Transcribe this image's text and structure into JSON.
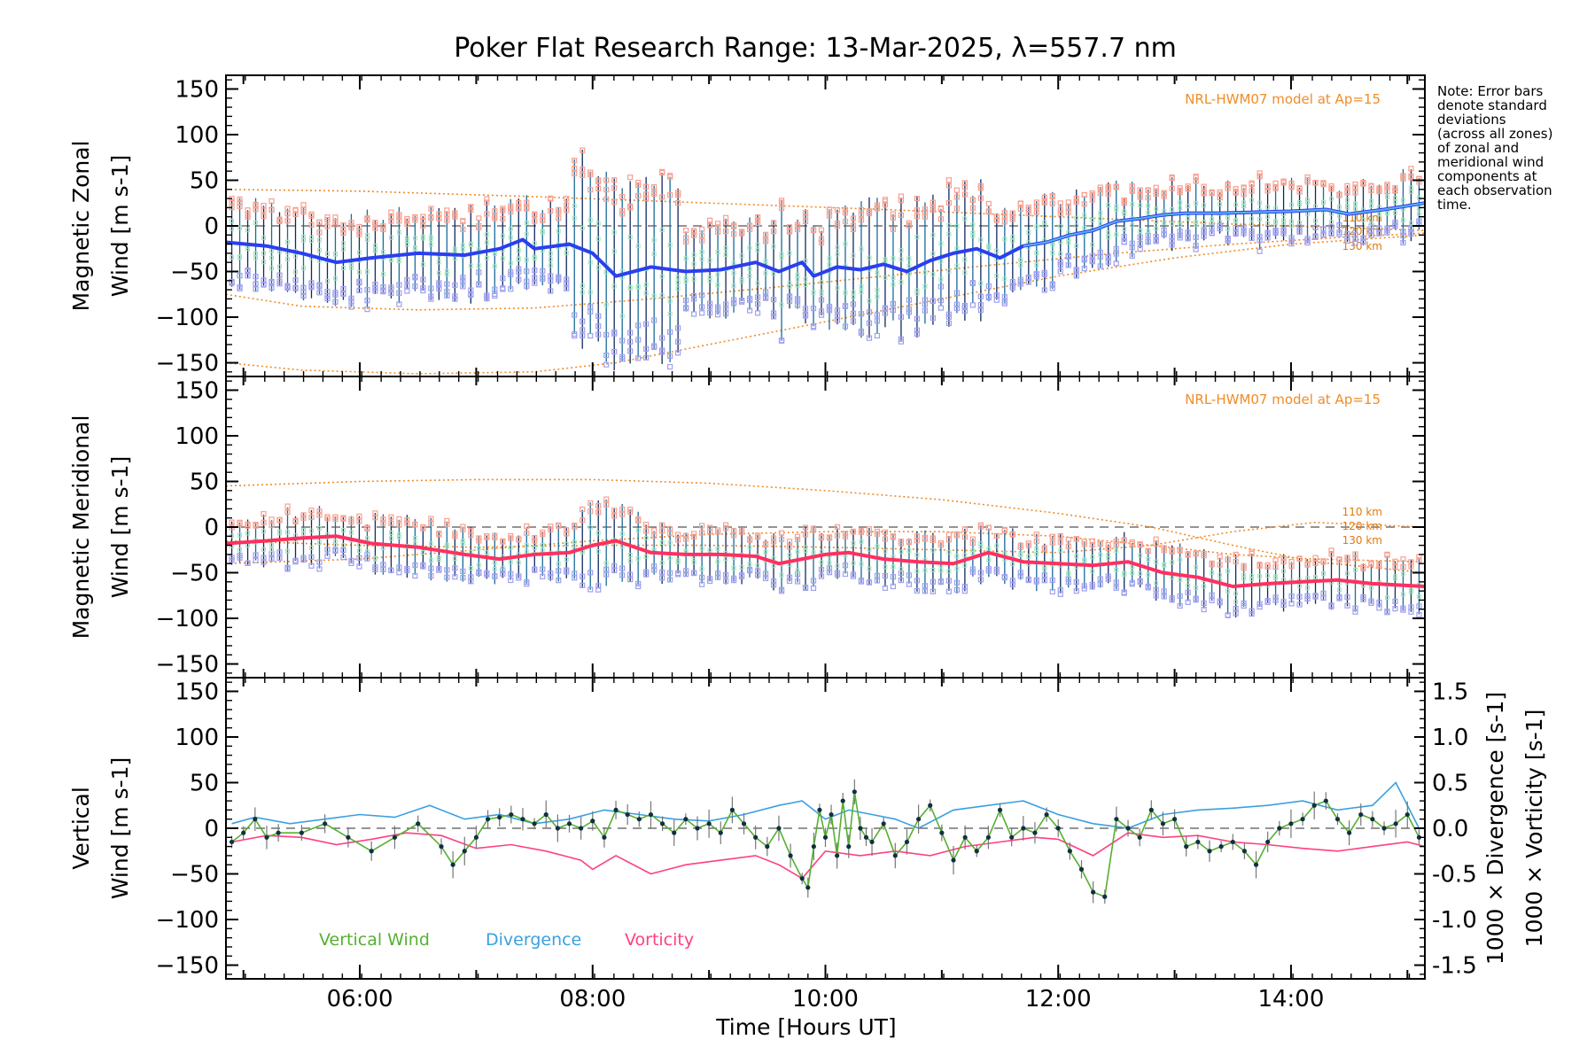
{
  "title": "Poker Flat Research Range: 13-Mar-2025, λ=557.7 nm",
  "note": [
    "Note: Error bars",
    "denote standard",
    "deviations",
    "(across all zones)",
    "of zonal and",
    "meridional wind",
    "components at",
    "each observation",
    "time."
  ],
  "model_label": "NRL-HWM07 model at Ap=15",
  "altitude_labels": [
    "110 km",
    "120 km",
    "130 km"
  ],
  "colors": {
    "zonal_mean": "#2a3ff0",
    "zonal_mean_light": "#5ab0f0",
    "meridional_mean": "#ff3060",
    "vertical_wind": "#55b030",
    "divergence": "#3aa0e0",
    "vorticity": "#ff4080",
    "model": "#f08c28",
    "error_bar_a": "#102a60",
    "error_bar_b": "#1a6a9a",
    "scatter_high": "#f8a090",
    "scatter_low": "#9fa0f0",
    "scatter_mid": "#a0e8c0"
  },
  "chart_data": [
    {
      "type": "line",
      "panel": "zonal",
      "ylabel_lines": [
        "Magnetic Zonal",
        "Wind [m s-1]"
      ],
      "ylim": [
        -165,
        165
      ],
      "yticks": [
        150,
        100,
        50,
        0,
        -50,
        -100,
        -150
      ],
      "xlim": [
        4.85,
        15.15
      ],
      "model_labels": [
        "110 km",
        "120 km",
        "130 km"
      ],
      "series": [
        {
          "kind": "mean",
          "x": [
            4.85,
            5.2,
            5.5,
            5.8,
            6.1,
            6.5,
            6.9,
            7.2,
            7.4,
            7.5,
            7.8,
            8.0,
            8.2,
            8.5,
            8.8,
            9.1,
            9.4,
            9.6,
            9.8,
            9.9,
            10.1,
            10.3,
            10.5,
            10.7,
            10.9,
            11.1,
            11.3,
            11.5,
            11.7,
            11.9,
            12.1,
            12.3,
            12.5,
            12.7,
            12.9,
            13.1,
            13.4,
            13.7,
            14.0,
            14.3,
            14.5,
            14.8,
            15.15
          ],
          "y": [
            -18,
            -22,
            -30,
            -40,
            -35,
            -30,
            -32,
            -25,
            -15,
            -25,
            -20,
            -30,
            -55,
            -45,
            -50,
            -48,
            -40,
            -50,
            -40,
            -55,
            -45,
            -48,
            -42,
            -50,
            -38,
            -30,
            -25,
            -35,
            -22,
            -18,
            -10,
            -5,
            5,
            8,
            12,
            14,
            14,
            15,
            16,
            18,
            13,
            18,
            25
          ]
        },
        {
          "kind": "model",
          "x": [
            4.85,
            6.0,
            7.5,
            9.0,
            10.5,
            12.0,
            13.5,
            15.15
          ],
          "y": [
            40,
            38,
            32,
            25,
            18,
            10,
            2,
            -5
          ]
        },
        {
          "kind": "model",
          "x": [
            4.85,
            5.5,
            6.5,
            7.5,
            8.5,
            9.5,
            10.5,
            11.5,
            12.5,
            13.5,
            14.5,
            15.15
          ],
          "y": [
            -75,
            -88,
            -92,
            -90,
            -80,
            -68,
            -55,
            -42,
            -30,
            -20,
            -12,
            -8
          ]
        },
        {
          "kind": "model",
          "x": [
            4.85,
            5.5,
            6.5,
            7.5,
            8.2,
            9.0,
            10.0,
            11.0,
            12.0,
            13.0,
            14.0,
            15.15
          ],
          "y": [
            -150,
            -158,
            -162,
            -160,
            -150,
            -130,
            -105,
            -80,
            -55,
            -35,
            -20,
            -10
          ]
        }
      ]
    },
    {
      "type": "line",
      "panel": "meridional",
      "ylabel_lines": [
        "Magnetic Meridional",
        "Wind [m s-1]"
      ],
      "ylim": [
        -165,
        165
      ],
      "yticks": [
        150,
        100,
        50,
        0,
        -50,
        -100,
        -150
      ],
      "xlim": [
        4.85,
        15.15
      ],
      "model_labels": [
        "110 km",
        "120 km",
        "130 km"
      ],
      "series": [
        {
          "kind": "mean",
          "x": [
            4.85,
            5.2,
            5.5,
            5.8,
            6.1,
            6.5,
            6.9,
            7.2,
            7.5,
            7.8,
            8.0,
            8.2,
            8.5,
            8.8,
            9.1,
            9.4,
            9.6,
            9.8,
            10.0,
            10.2,
            10.5,
            10.8,
            11.1,
            11.4,
            11.7,
            12.0,
            12.3,
            12.6,
            12.9,
            13.2,
            13.5,
            13.8,
            14.1,
            14.4,
            14.7,
            15.15
          ],
          "y": [
            -18,
            -15,
            -12,
            -10,
            -18,
            -22,
            -30,
            -35,
            -30,
            -28,
            -20,
            -15,
            -28,
            -30,
            -30,
            -32,
            -40,
            -35,
            -30,
            -28,
            -35,
            -38,
            -40,
            -28,
            -38,
            -40,
            -42,
            -38,
            -50,
            -55,
            -65,
            -62,
            -60,
            -58,
            -62,
            -65
          ]
        },
        {
          "kind": "model",
          "x": [
            4.85,
            6.0,
            7.0,
            8.0,
            9.0,
            10.0,
            11.0,
            12.0,
            12.8,
            13.5,
            14.2,
            15.15
          ],
          "y": [
            45,
            50,
            52,
            52,
            48,
            40,
            30,
            15,
            0,
            -20,
            -38,
            -50
          ]
        },
        {
          "kind": "model",
          "x": [
            4.85,
            6.0,
            7.0,
            8.0,
            9.0,
            10.0,
            11.0,
            12.0,
            12.8,
            13.5,
            14.2,
            15.15
          ],
          "y": [
            -40,
            -35,
            -25,
            -15,
            -8,
            -5,
            -5,
            -10,
            -20,
            -30,
            -35,
            -38
          ]
        },
        {
          "kind": "model",
          "x": [
            4.85,
            6.0,
            7.0,
            8.0,
            9.0,
            10.0,
            11.0,
            12.0,
            12.8,
            13.5,
            14.2,
            15.15
          ],
          "y": [
            -15,
            -20,
            -22,
            -20,
            -20,
            -22,
            -25,
            -28,
            -20,
            -5,
            5,
            0
          ]
        }
      ]
    },
    {
      "type": "line",
      "panel": "vertical",
      "ylabel_left": [
        "Vertical",
        "Wind [m s-1]"
      ],
      "ylabel_right": [
        "1000 × Divergence [s-1]",
        "1000 × Vorticity [s-1]"
      ],
      "ylim": [
        -165,
        165
      ],
      "yticks": [
        150,
        100,
        50,
        0,
        -50,
        -100,
        -150
      ],
      "ylim_right": [
        -1.65,
        1.65
      ],
      "yticks_right": [
        1.5,
        1.0,
        0.5,
        0.0,
        -0.5,
        -1.0,
        -1.5
      ],
      "xlim": [
        4.85,
        15.15
      ],
      "xticks": [
        "06:00",
        "08:00",
        "10:00",
        "12:00",
        "14:00"
      ],
      "xtick_values": [
        6,
        8,
        10,
        12,
        14
      ],
      "xlabel": "Time [Hours UT]",
      "legend": [
        "Vertical Wind",
        "Divergence",
        "Vorticity"
      ],
      "series": [
        {
          "name": "Vertical Wind",
          "x": [
            4.9,
            5.0,
            5.1,
            5.2,
            5.3,
            5.5,
            5.7,
            5.9,
            6.1,
            6.3,
            6.5,
            6.7,
            6.8,
            6.9,
            7.0,
            7.1,
            7.2,
            7.3,
            7.4,
            7.5,
            7.6,
            7.7,
            7.8,
            7.9,
            8.0,
            8.1,
            8.2,
            8.3,
            8.4,
            8.5,
            8.6,
            8.7,
            8.8,
            8.9,
            9.0,
            9.1,
            9.2,
            9.3,
            9.4,
            9.5,
            9.6,
            9.7,
            9.8,
            9.85,
            9.9,
            9.95,
            10.0,
            10.05,
            10.1,
            10.15,
            10.2,
            10.25,
            10.3,
            10.35,
            10.4,
            10.5,
            10.6,
            10.7,
            10.8,
            10.9,
            11.0,
            11.1,
            11.2,
            11.3,
            11.4,
            11.5,
            11.6,
            11.7,
            11.8,
            11.9,
            12.0,
            12.1,
            12.2,
            12.3,
            12.4,
            12.5,
            12.6,
            12.7,
            12.8,
            12.9,
            13.0,
            13.1,
            13.2,
            13.3,
            13.4,
            13.5,
            13.6,
            13.7,
            13.8,
            13.9,
            14.0,
            14.1,
            14.2,
            14.3,
            14.4,
            14.5,
            14.6,
            14.7,
            14.8,
            14.9,
            15.0,
            15.1
          ],
          "y": [
            -15,
            -5,
            10,
            -10,
            -5,
            -5,
            5,
            -10,
            -25,
            -10,
            5,
            -20,
            -40,
            -25,
            -10,
            10,
            12,
            15,
            10,
            5,
            15,
            0,
            5,
            0,
            8,
            -10,
            20,
            15,
            10,
            15,
            5,
            -5,
            10,
            0,
            5,
            -5,
            20,
            5,
            -10,
            -20,
            0,
            -30,
            -55,
            -65,
            -20,
            20,
            -10,
            15,
            -30,
            30,
            -20,
            40,
            0,
            -10,
            -15,
            5,
            -30,
            -15,
            10,
            25,
            -5,
            -35,
            -10,
            -25,
            -10,
            20,
            -10,
            0,
            -5,
            15,
            0,
            -25,
            -45,
            -70,
            -75,
            10,
            0,
            -10,
            20,
            5,
            10,
            -20,
            -15,
            -25,
            -20,
            -15,
            -25,
            -40,
            -15,
            0,
            5,
            10,
            25,
            30,
            10,
            -5,
            15,
            10,
            0,
            5,
            15,
            -10
          ]
        },
        {
          "name": "Divergence",
          "axis": "right",
          "x": [
            4.9,
            5.1,
            5.4,
            5.7,
            6.0,
            6.3,
            6.6,
            6.9,
            7.2,
            7.5,
            7.8,
            8.1,
            8.4,
            8.7,
            9.0,
            9.3,
            9.6,
            9.8,
            10.0,
            10.2,
            10.4,
            10.6,
            10.8,
            11.1,
            11.4,
            11.7,
            12.0,
            12.3,
            12.6,
            12.9,
            13.2,
            13.5,
            13.8,
            14.1,
            14.4,
            14.7,
            14.9,
            15.1
          ],
          "y": [
            0.05,
            0.12,
            0.05,
            0.1,
            0.15,
            0.12,
            0.25,
            0.1,
            0.15,
            0.05,
            0.1,
            0.2,
            0.15,
            0.1,
            0.08,
            0.15,
            0.25,
            0.3,
            0.1,
            0.2,
            0.15,
            0.1,
            0.0,
            0.2,
            0.25,
            0.3,
            0.15,
            0.05,
            0.0,
            0.15,
            0.2,
            0.22,
            0.25,
            0.3,
            0.2,
            0.25,
            0.5,
            0.0
          ]
        },
        {
          "name": "Vorticity",
          "axis": "right",
          "x": [
            4.9,
            5.2,
            5.5,
            5.8,
            6.1,
            6.4,
            6.7,
            7.0,
            7.3,
            7.6,
            7.9,
            8.0,
            8.2,
            8.5,
            8.8,
            9.1,
            9.4,
            9.6,
            9.8,
            10.0,
            10.3,
            10.6,
            10.9,
            11.2,
            11.5,
            11.8,
            12.0,
            12.3,
            12.6,
            12.9,
            13.2,
            13.5,
            13.8,
            14.1,
            14.4,
            14.7,
            15.0,
            15.15
          ],
          "y": [
            -0.15,
            -0.08,
            -0.1,
            -0.18,
            -0.12,
            -0.05,
            -0.08,
            -0.22,
            -0.18,
            -0.25,
            -0.35,
            -0.45,
            -0.3,
            -0.5,
            -0.4,
            -0.35,
            -0.3,
            -0.4,
            -0.55,
            -0.25,
            -0.3,
            -0.25,
            -0.3,
            -0.2,
            -0.15,
            -0.1,
            -0.12,
            -0.3,
            -0.05,
            -0.1,
            -0.08,
            -0.15,
            -0.18,
            -0.22,
            -0.25,
            -0.2,
            -0.15,
            -0.2
          ]
        }
      ]
    }
  ]
}
